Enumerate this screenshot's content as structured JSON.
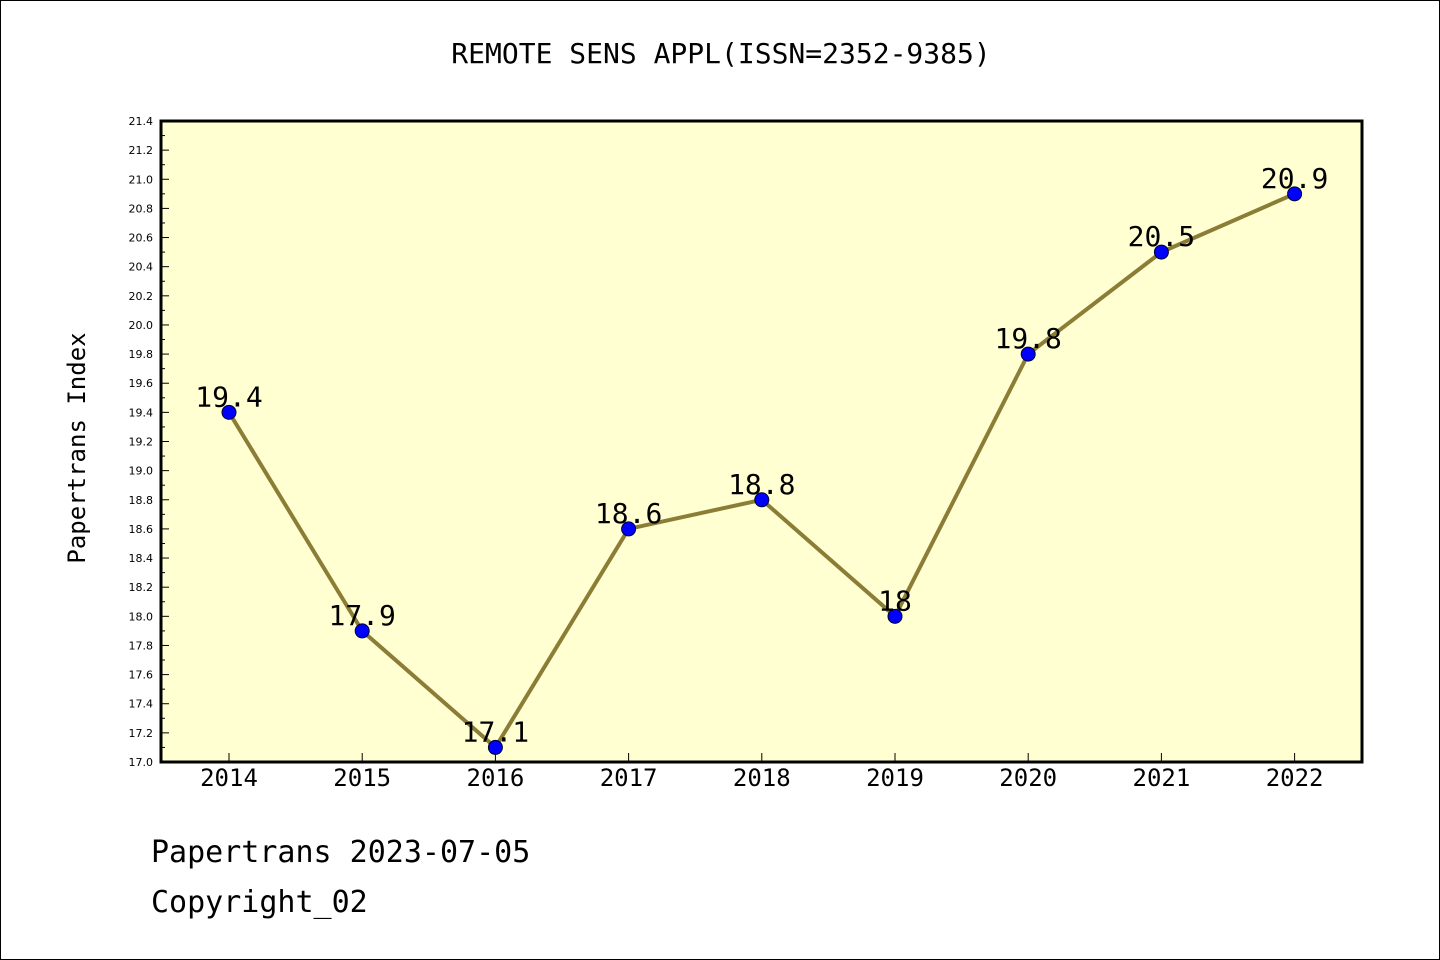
{
  "chart_data": {
    "type": "line",
    "title": "REMOTE SENS APPL(ISSN=2352-9385)",
    "xlabel": "",
    "ylabel": "Papertrans Index",
    "categories": [
      "2014",
      "2015",
      "2016",
      "2017",
      "2018",
      "2019",
      "2020",
      "2021",
      "2022"
    ],
    "series": [
      {
        "values": [
          19.4,
          17.9,
          17.1,
          18.6,
          18.8,
          18.0,
          19.8,
          20.5,
          20.9
        ],
        "data_labels": [
          "19.4",
          "17.9",
          "17.1",
          "18.6",
          "18.8",
          "18",
          "19.8",
          "20.5",
          "20.9"
        ],
        "line_color": "#8b7d36",
        "marker_color": "#0000ff"
      }
    ],
    "ylim": [
      17.0,
      21.4
    ],
    "y_ticks": [
      "17.0",
      "17.2",
      "17.4",
      "17.6",
      "17.8",
      "18.0",
      "18.2",
      "18.4",
      "18.6",
      "18.8",
      "19.0",
      "19.2",
      "19.4",
      "19.6",
      "19.8",
      "20.0",
      "20.2",
      "20.4",
      "20.6",
      "20.8",
      "21.0",
      "21.2",
      "21.4"
    ],
    "grid": false,
    "legend": "none",
    "plot_background": "#ffffd2"
  },
  "footer": {
    "line1": "Papertrans 2023-07-05",
    "line2": "Copyright_02"
  }
}
